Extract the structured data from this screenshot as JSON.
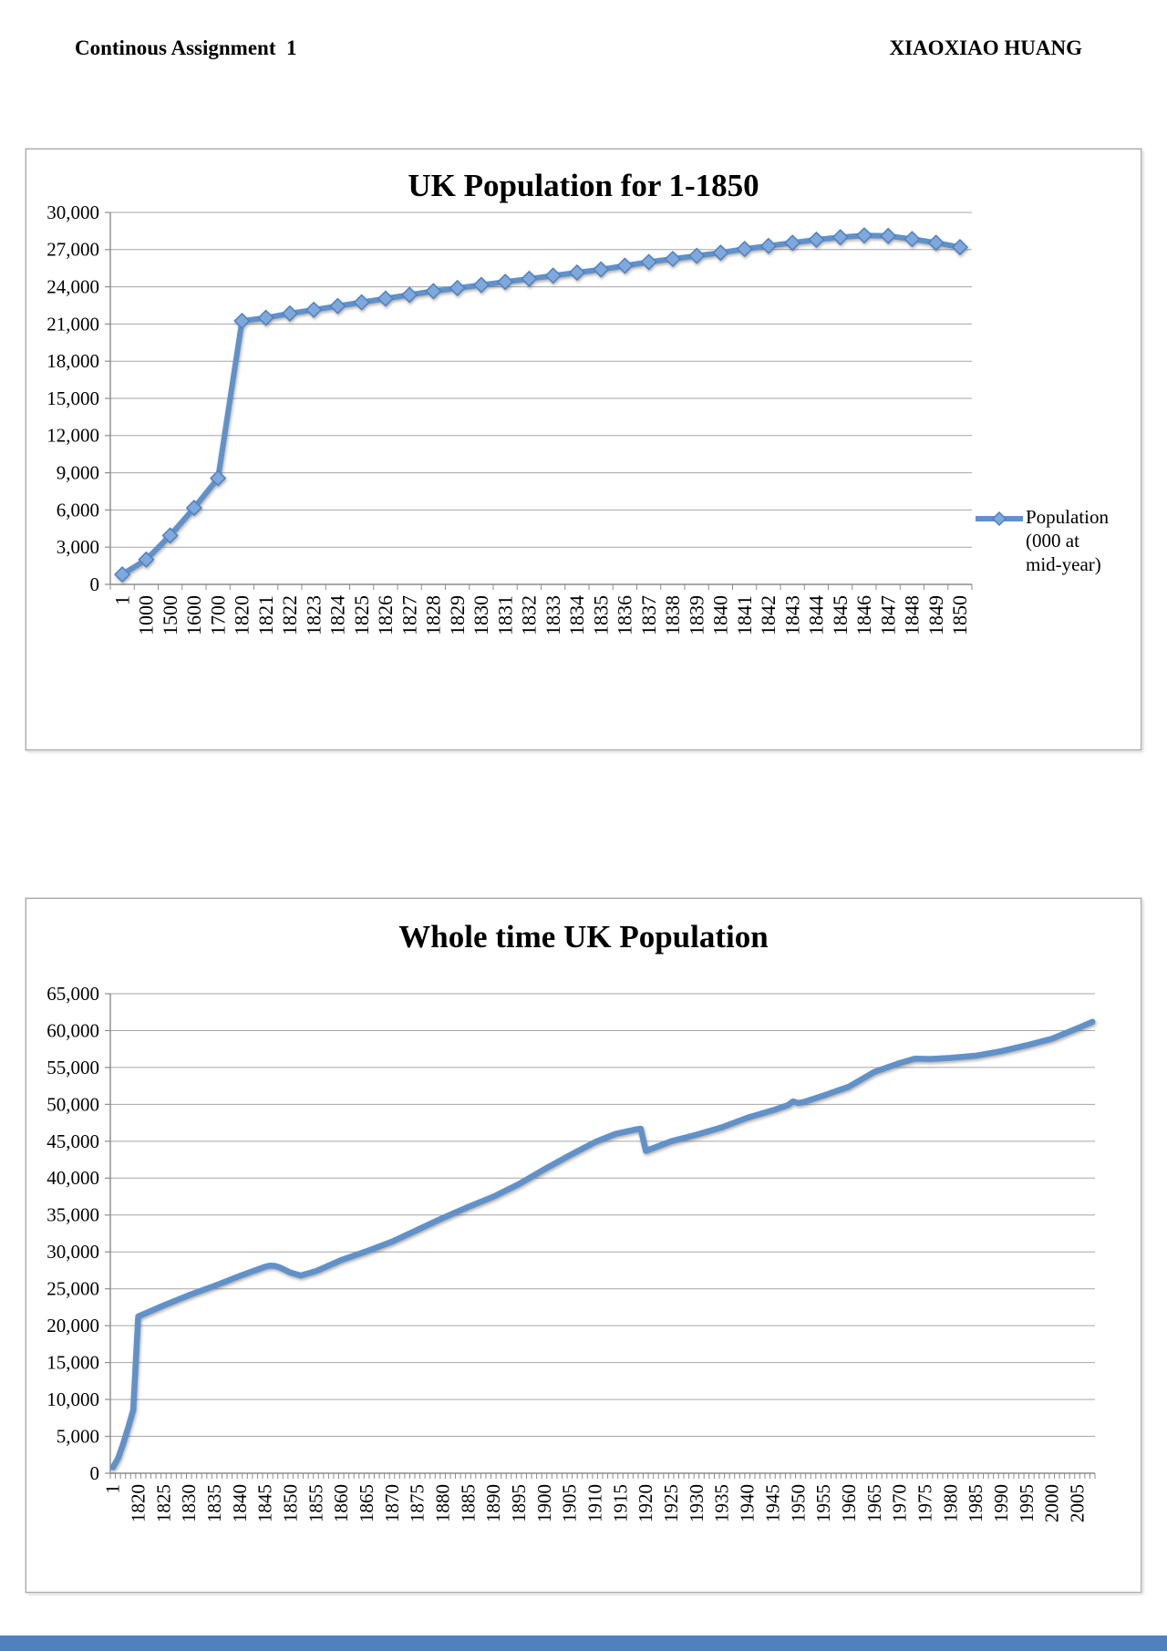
{
  "header": {
    "left": "Continous Assignment  1",
    "right": "XIAOXIAO HUANG"
  },
  "colors": {
    "line": "#6191C9",
    "marker_fill": "#7FA9DC",
    "marker_edge": "#5081BC",
    "grid": "#A6A6A6",
    "axis": "#8C8C8C",
    "text": "#000000",
    "footer_bar": "#4F81BD",
    "chart_border": "#A8A8A8"
  },
  "chart_data": [
    {
      "type": "line",
      "title": "UK Population for 1-1850",
      "marker": "diamond",
      "grid": true,
      "line_width": 6,
      "ylim": [
        0,
        30000
      ],
      "ytick_step": 3000,
      "ytick_labels": [
        "0",
        "3,000",
        "6,000",
        "9,000",
        "12,000",
        "15,000",
        "18,000",
        "21,000",
        "24,000",
        "27,000",
        "30,000"
      ],
      "n_slots": 36,
      "categories": [
        "1",
        "1000",
        "1500",
        "1600",
        "1700",
        "1820",
        "1821",
        "1822",
        "1823",
        "1824",
        "1825",
        "1826",
        "1827",
        "1828",
        "1829",
        "1830",
        "1831",
        "1832",
        "1833",
        "1834",
        "1835",
        "1836",
        "1837",
        "1838",
        "1839",
        "1840",
        "1841",
        "1842",
        "1843",
        "1844",
        "1845",
        "1846",
        "1847",
        "1848",
        "1849",
        "1850"
      ],
      "values": [
        800,
        2000,
        3942,
        6170,
        8565,
        21250,
        21500,
        21850,
        22150,
        22450,
        22750,
        23050,
        23350,
        23650,
        23900,
        24150,
        24400,
        24650,
        24900,
        25150,
        25400,
        25700,
        26000,
        26250,
        26500,
        26750,
        27050,
        27300,
        27550,
        27800,
        28000,
        28150,
        28100,
        27850,
        27550,
        27200
      ],
      "legend": {
        "position": "right",
        "lines": [
          "Population",
          "(000 at",
          "mid-year)"
        ]
      }
    },
    {
      "type": "line",
      "title": "Whole time UK Population",
      "marker": "none",
      "grid": true,
      "line_width": 6.5,
      "ylim": [
        0,
        65000
      ],
      "ytick_step": 5000,
      "ytick_labels": [
        "0",
        "5,000",
        "10,000",
        "15,000",
        "20,000",
        "25,000",
        "30,000",
        "35,000",
        "40,000",
        "45,000",
        "50,000",
        "55,000",
        "60,000",
        "65,000"
      ],
      "n_slots": 194,
      "x": [
        1,
        1000,
        1500,
        1600,
        1700,
        1820,
        1825,
        1830,
        1835,
        1840,
        1845,
        1846,
        1847,
        1848,
        1850,
        1852,
        1855,
        1860,
        1865,
        1870,
        1875,
        1880,
        1885,
        1890,
        1895,
        1900,
        1905,
        1910,
        1914,
        1918,
        1919,
        1920,
        1925,
        1930,
        1935,
        1940,
        1945,
        1948,
        1949,
        1950,
        1951,
        1955,
        1960,
        1965,
        1970,
        1973,
        1976,
        1980,
        1985,
        1990,
        1995,
        2000,
        2005,
        2008
      ],
      "values": [
        800,
        2000,
        3942,
        6170,
        8565,
        21250,
        22750,
        24150,
        25400,
        26750,
        28000,
        28150,
        28100,
        27850,
        27200,
        26800,
        27400,
        28900,
        30100,
        31400,
        33000,
        34600,
        36100,
        37500,
        39200,
        41200,
        43100,
        44900,
        46000,
        46600,
        46700,
        43700,
        45000,
        45900,
        46900,
        48200,
        49200,
        49900,
        50400,
        50200,
        50300,
        51200,
        52400,
        54400,
        55600,
        56200,
        56150,
        56300,
        56600,
        57200,
        58000,
        58900,
        60300,
        61200
      ],
      "series_slots": [
        0,
        1,
        2,
        3,
        4,
        5,
        10,
        15,
        20,
        25,
        30,
        31,
        32,
        33,
        35,
        37,
        40,
        45,
        50,
        55,
        60,
        65,
        70,
        75,
        80,
        85,
        90,
        95,
        99,
        103,
        104,
        105,
        110,
        115,
        120,
        125,
        130,
        133,
        134,
        135,
        136,
        140,
        145,
        150,
        155,
        158,
        161,
        165,
        170,
        175,
        180,
        185,
        190,
        193
      ],
      "xticks": [
        {
          "label": "1",
          "slot": 0
        },
        {
          "label": "1820",
          "slot": 5
        },
        {
          "label": "1825",
          "slot": 10
        },
        {
          "label": "1830",
          "slot": 15
        },
        {
          "label": "1835",
          "slot": 20
        },
        {
          "label": "1840",
          "slot": 25
        },
        {
          "label": "1845",
          "slot": 30
        },
        {
          "label": "1850",
          "slot": 35
        },
        {
          "label": "1855",
          "slot": 40
        },
        {
          "label": "1860",
          "slot": 45
        },
        {
          "label": "1865",
          "slot": 50
        },
        {
          "label": "1870",
          "slot": 55
        },
        {
          "label": "1875",
          "slot": 60
        },
        {
          "label": "1880",
          "slot": 65
        },
        {
          "label": "1885",
          "slot": 70
        },
        {
          "label": "1890",
          "slot": 75
        },
        {
          "label": "1895",
          "slot": 80
        },
        {
          "label": "1900",
          "slot": 85
        },
        {
          "label": "1905",
          "slot": 90
        },
        {
          "label": "1910",
          "slot": 95
        },
        {
          "label": "1915",
          "slot": 100
        },
        {
          "label": "1920",
          "slot": 105
        },
        {
          "label": "1925",
          "slot": 110
        },
        {
          "label": "1930",
          "slot": 115
        },
        {
          "label": "1935",
          "slot": 120
        },
        {
          "label": "1940",
          "slot": 125
        },
        {
          "label": "1945",
          "slot": 130
        },
        {
          "label": "1950",
          "slot": 135
        },
        {
          "label": "1955",
          "slot": 140
        },
        {
          "label": "1960",
          "slot": 145
        },
        {
          "label": "1965",
          "slot": 150
        },
        {
          "label": "1970",
          "slot": 155
        },
        {
          "label": "1975",
          "slot": 160
        },
        {
          "label": "1980",
          "slot": 165
        },
        {
          "label": "1985",
          "slot": 170
        },
        {
          "label": "1990",
          "slot": 175
        },
        {
          "label": "1995",
          "slot": 180
        },
        {
          "label": "2000",
          "slot": 185
        },
        {
          "label": "2005",
          "slot": 190
        }
      ],
      "legend": null
    }
  ]
}
